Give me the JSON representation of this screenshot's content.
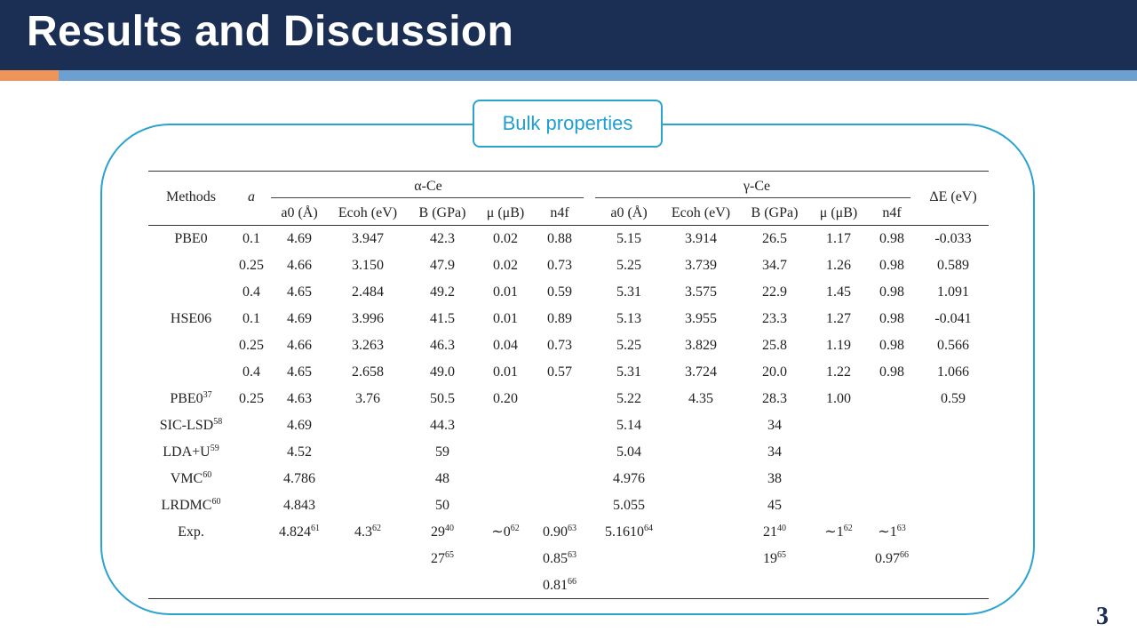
{
  "slide": {
    "title": "Results and Discussion",
    "section_label": "Bulk properties",
    "page_number": "3"
  },
  "table": {
    "header": {
      "methods": "Methods",
      "a": "a",
      "alpha_group": "α-Ce",
      "gamma_group": "γ-Ce",
      "delta_e": "ΔE (eV)",
      "a0": "a0 (Å)",
      "ecoh": "Ecoh (eV)",
      "b": "B (GPa)",
      "mu": "μ (μB)",
      "n4f": "n4f"
    },
    "rows": [
      {
        "method": "PBE0",
        "method_sup": "",
        "a": "0.1",
        "c": [
          [
            "4.69",
            ""
          ],
          [
            "3.947",
            ""
          ],
          [
            "42.3",
            ""
          ],
          [
            "0.02",
            ""
          ],
          [
            "0.88",
            ""
          ],
          [
            "5.15",
            ""
          ],
          [
            "3.914",
            ""
          ],
          [
            "26.5",
            ""
          ],
          [
            "1.17",
            ""
          ],
          [
            "0.98",
            ""
          ],
          [
            "-0.033",
            ""
          ]
        ]
      },
      {
        "method": "",
        "method_sup": "",
        "a": "0.25",
        "c": [
          [
            "4.66",
            ""
          ],
          [
            "3.150",
            ""
          ],
          [
            "47.9",
            ""
          ],
          [
            "0.02",
            ""
          ],
          [
            "0.73",
            ""
          ],
          [
            "5.25",
            ""
          ],
          [
            "3.739",
            ""
          ],
          [
            "34.7",
            ""
          ],
          [
            "1.26",
            ""
          ],
          [
            "0.98",
            ""
          ],
          [
            "0.589",
            ""
          ]
        ]
      },
      {
        "method": "",
        "method_sup": "",
        "a": "0.4",
        "c": [
          [
            "4.65",
            ""
          ],
          [
            "2.484",
            ""
          ],
          [
            "49.2",
            ""
          ],
          [
            "0.01",
            ""
          ],
          [
            "0.59",
            ""
          ],
          [
            "5.31",
            ""
          ],
          [
            "3.575",
            ""
          ],
          [
            "22.9",
            ""
          ],
          [
            "1.45",
            ""
          ],
          [
            "0.98",
            ""
          ],
          [
            "1.091",
            ""
          ]
        ]
      },
      {
        "method": "HSE06",
        "method_sup": "",
        "a": "0.1",
        "c": [
          [
            "4.69",
            ""
          ],
          [
            "3.996",
            ""
          ],
          [
            "41.5",
            ""
          ],
          [
            "0.01",
            ""
          ],
          [
            "0.89",
            ""
          ],
          [
            "5.13",
            ""
          ],
          [
            "3.955",
            ""
          ],
          [
            "23.3",
            ""
          ],
          [
            "1.27",
            ""
          ],
          [
            "0.98",
            ""
          ],
          [
            "-0.041",
            ""
          ]
        ]
      },
      {
        "method": "",
        "method_sup": "",
        "a": "0.25",
        "c": [
          [
            "4.66",
            ""
          ],
          [
            "3.263",
            ""
          ],
          [
            "46.3",
            ""
          ],
          [
            "0.04",
            ""
          ],
          [
            "0.73",
            ""
          ],
          [
            "5.25",
            ""
          ],
          [
            "3.829",
            ""
          ],
          [
            "25.8",
            ""
          ],
          [
            "1.19",
            ""
          ],
          [
            "0.98",
            ""
          ],
          [
            "0.566",
            ""
          ]
        ]
      },
      {
        "method": "",
        "method_sup": "",
        "a": "0.4",
        "c": [
          [
            "4.65",
            ""
          ],
          [
            "2.658",
            ""
          ],
          [
            "49.0",
            ""
          ],
          [
            "0.01",
            ""
          ],
          [
            "0.57",
            ""
          ],
          [
            "5.31",
            ""
          ],
          [
            "3.724",
            ""
          ],
          [
            "20.0",
            ""
          ],
          [
            "1.22",
            ""
          ],
          [
            "0.98",
            ""
          ],
          [
            "1.066",
            ""
          ]
        ]
      },
      {
        "method": "PBE0",
        "method_sup": "37",
        "a": "0.25",
        "c": [
          [
            "4.63",
            ""
          ],
          [
            "3.76",
            ""
          ],
          [
            "50.5",
            ""
          ],
          [
            "0.20",
            ""
          ],
          [
            "",
            ""
          ],
          [
            "5.22",
            ""
          ],
          [
            "4.35",
            ""
          ],
          [
            "28.3",
            ""
          ],
          [
            "1.00",
            ""
          ],
          [
            "",
            ""
          ],
          [
            "0.59",
            ""
          ]
        ]
      },
      {
        "method": "SIC-LSD",
        "method_sup": "58",
        "a": "",
        "c": [
          [
            "4.69",
            ""
          ],
          [
            "",
            ""
          ],
          [
            "44.3",
            ""
          ],
          [
            "",
            ""
          ],
          [
            "",
            ""
          ],
          [
            "5.14",
            ""
          ],
          [
            "",
            ""
          ],
          [
            "34",
            ""
          ],
          [
            "",
            ""
          ],
          [
            "",
            ""
          ],
          [
            "",
            ""
          ]
        ]
      },
      {
        "method": "LDA+U",
        "method_sup": "59",
        "a": "",
        "c": [
          [
            "4.52",
            ""
          ],
          [
            "",
            ""
          ],
          [
            "59",
            ""
          ],
          [
            "",
            ""
          ],
          [
            "",
            ""
          ],
          [
            "5.04",
            ""
          ],
          [
            "",
            ""
          ],
          [
            "34",
            ""
          ],
          [
            "",
            ""
          ],
          [
            "",
            ""
          ],
          [
            "",
            ""
          ]
        ]
      },
      {
        "method": "VMC",
        "method_sup": "60",
        "a": "",
        "c": [
          [
            "4.786",
            ""
          ],
          [
            "",
            ""
          ],
          [
            "48",
            ""
          ],
          [
            "",
            ""
          ],
          [
            "",
            ""
          ],
          [
            "4.976",
            ""
          ],
          [
            "",
            ""
          ],
          [
            "38",
            ""
          ],
          [
            "",
            ""
          ],
          [
            "",
            ""
          ],
          [
            "",
            ""
          ]
        ]
      },
      {
        "method": "LRDMC",
        "method_sup": "60",
        "a": "",
        "c": [
          [
            "4.843",
            ""
          ],
          [
            "",
            ""
          ],
          [
            "50",
            ""
          ],
          [
            "",
            ""
          ],
          [
            "",
            ""
          ],
          [
            "5.055",
            ""
          ],
          [
            "",
            ""
          ],
          [
            "45",
            ""
          ],
          [
            "",
            ""
          ],
          [
            "",
            ""
          ],
          [
            "",
            ""
          ]
        ]
      },
      {
        "method": "Exp.",
        "method_sup": "",
        "a": "",
        "c": [
          [
            "4.824",
            "61"
          ],
          [
            "4.3",
            "62"
          ],
          [
            "29",
            "40"
          ],
          [
            "∼0",
            "62"
          ],
          [
            "0.90",
            "63"
          ],
          [
            "5.1610",
            "64"
          ],
          [
            "",
            ""
          ],
          [
            "21",
            "40"
          ],
          [
            "∼1",
            "62"
          ],
          [
            "∼1",
            "63"
          ],
          [
            "",
            ""
          ]
        ]
      },
      {
        "method": "",
        "method_sup": "",
        "a": "",
        "c": [
          [
            "",
            ""
          ],
          [
            "",
            ""
          ],
          [
            "27",
            "65"
          ],
          [
            "",
            ""
          ],
          [
            "0.85",
            "63"
          ],
          [
            "",
            ""
          ],
          [
            "",
            ""
          ],
          [
            "19",
            "65"
          ],
          [
            "",
            ""
          ],
          [
            "0.97",
            "66"
          ],
          [
            "",
            ""
          ]
        ]
      },
      {
        "method": "",
        "method_sup": "",
        "a": "",
        "c": [
          [
            "",
            ""
          ],
          [
            "",
            ""
          ],
          [
            "",
            ""
          ],
          [
            "",
            ""
          ],
          [
            "0.81",
            "66"
          ],
          [
            "",
            ""
          ],
          [
            "",
            ""
          ],
          [
            "",
            ""
          ],
          [
            "",
            ""
          ],
          [
            "",
            ""
          ],
          [
            "",
            ""
          ]
        ]
      }
    ]
  }
}
